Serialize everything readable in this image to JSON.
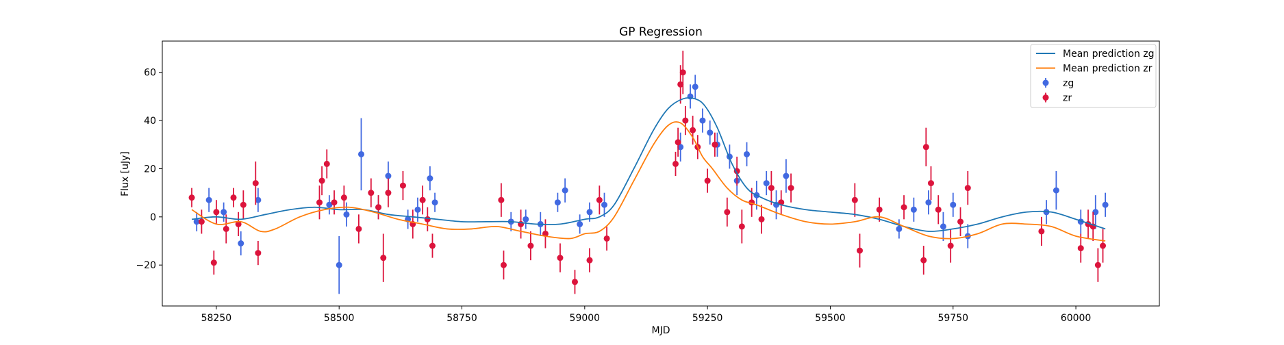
{
  "chart_data": {
    "type": "scatter",
    "title": "GP Regression",
    "xlabel": "MJD",
    "ylabel": "Flux [uJy]",
    "xlim": [
      58140,
      60170
    ],
    "ylim": [
      -37,
      73
    ],
    "xticks": [
      58250,
      58500,
      58750,
      59000,
      59250,
      59500,
      59750,
      60000
    ],
    "yticks": [
      -20,
      0,
      20,
      40,
      60
    ],
    "grid": false,
    "legend_position": "top-right",
    "colors": {
      "mean_zg": "#1f77b4",
      "mean_zr": "#ff7f0e",
      "zg": "#4169e1",
      "zr": "#dc143c"
    },
    "legend": [
      {
        "label": "Mean prediction zg",
        "kind": "line",
        "color": "#1f77b4"
      },
      {
        "label": "Mean prediction zr",
        "kind": "line",
        "color": "#ff7f0e"
      },
      {
        "label": "zg",
        "kind": "errorbar",
        "color": "#4169e1"
      },
      {
        "label": "zr",
        "kind": "errorbar",
        "color": "#dc143c"
      }
    ],
    "series": [
      {
        "name": "Mean prediction zg",
        "kind": "line",
        "x": [
          58200,
          58250,
          58300,
          58350,
          58400,
          58450,
          58500,
          58550,
          58600,
          58650,
          58700,
          58750,
          58800,
          58850,
          58900,
          58950,
          59000,
          59030,
          59060,
          59100,
          59140,
          59170,
          59200,
          59225,
          59245,
          59270,
          59300,
          59330,
          59360,
          59400,
          59450,
          59500,
          59550,
          59600,
          59650,
          59700,
          59750,
          59800,
          59850,
          59900,
          59950,
          60000,
          60060
        ],
        "y": [
          -1,
          0,
          -1,
          1,
          3,
          4,
          3,
          3,
          1,
          0,
          -1,
          -2,
          -2,
          -2,
          -3,
          -3,
          -1,
          0,
          5,
          20,
          36,
          45,
          49,
          49,
          46,
          37,
          22,
          12,
          8,
          5,
          3,
          2,
          1,
          -1,
          -4,
          -6,
          -5,
          -3,
          0,
          2,
          2,
          -1,
          -5
        ]
      },
      {
        "name": "Mean prediction zr",
        "kind": "line",
        "x": [
          58200,
          58250,
          58300,
          58340,
          58370,
          58420,
          58470,
          58520,
          58570,
          58620,
          58670,
          58720,
          58770,
          58820,
          58870,
          58920,
          58970,
          59000,
          59030,
          59060,
          59100,
          59140,
          59170,
          59195,
          59220,
          59240,
          59260,
          59290,
          59320,
          59350,
          59400,
          59450,
          59500,
          59550,
          59600,
          59650,
          59700,
          59750,
          59800,
          59850,
          59900,
          59950,
          60000,
          60060
        ],
        "y": [
          3,
          -3,
          -2,
          -6,
          -5,
          0,
          3,
          4,
          2,
          -1,
          -3,
          -5,
          -5,
          -4,
          -6,
          -8,
          -9,
          -7,
          -6,
          0,
          15,
          30,
          38,
          39,
          33,
          25,
          20,
          12,
          7,
          5,
          1,
          -2,
          -3,
          -2,
          0,
          -4,
          -8,
          -9,
          -7,
          -3,
          -3,
          -4,
          -8,
          -10
        ]
      },
      {
        "name": "zg",
        "kind": "errorbar",
        "x": [
          58210,
          58235,
          58265,
          58300,
          58335,
          58480,
          58500,
          58515,
          58545,
          58580,
          58600,
          58640,
          58660,
          58685,
          58695,
          58850,
          58880,
          58910,
          58945,
          58960,
          58990,
          59010,
          59040,
          59195,
          59215,
          59225,
          59240,
          59255,
          59270,
          59295,
          59310,
          59330,
          59350,
          59370,
          59390,
          59410,
          59640,
          59670,
          59700,
          59730,
          59750,
          59780,
          59940,
          59960,
          60010,
          60040,
          60060
        ],
        "y": [
          -2,
          7,
          2,
          -11,
          7,
          5,
          -20,
          1,
          26,
          4,
          17,
          -1,
          3,
          16,
          6,
          -2,
          -1,
          -3,
          6,
          11,
          -3,
          2,
          5,
          29,
          50,
          54,
          40,
          35,
          30,
          25,
          15,
          26,
          9,
          14,
          5,
          17,
          -5,
          3,
          6,
          -4,
          5,
          -8,
          2,
          11,
          -2,
          2,
          5
        ],
        "err": [
          4,
          5,
          4,
          5,
          5,
          4,
          12,
          5,
          15,
          5,
          6,
          4,
          5,
          5,
          4,
          4,
          4,
          5,
          4,
          5,
          4,
          4,
          5,
          6,
          5,
          5,
          5,
          5,
          5,
          5,
          6,
          5,
          6,
          5,
          6,
          7,
          4,
          5,
          5,
          6,
          5,
          5,
          5,
          8,
          5,
          7,
          5
        ]
      },
      {
        "name": "zr",
        "kind": "errorbar",
        "x": [
          58200,
          58220,
          58245,
          58250,
          58270,
          58285,
          58295,
          58305,
          58330,
          58335,
          58460,
          58465,
          58475,
          58490,
          58510,
          58540,
          58565,
          58580,
          58590,
          58600,
          58630,
          58650,
          58670,
          58680,
          58690,
          58830,
          58835,
          58870,
          58890,
          58920,
          58950,
          58980,
          59010,
          59030,
          59045,
          59185,
          59190,
          59195,
          59200,
          59205,
          59220,
          59230,
          59250,
          59265,
          59290,
          59310,
          59320,
          59340,
          59360,
          59380,
          59400,
          59420,
          59550,
          59560,
          59600,
          59650,
          59690,
          59695,
          59705,
          59720,
          59745,
          59765,
          59780,
          59930,
          60010,
          60025,
          60035,
          60045,
          60055
        ],
        "y": [
          8,
          -2,
          -19,
          2,
          -5,
          8,
          -3,
          5,
          14,
          -15,
          6,
          15,
          22,
          6,
          8,
          -5,
          10,
          4,
          -17,
          10,
          13,
          -3,
          7,
          -1,
          -12,
          7,
          -20,
          -3,
          -12,
          -7,
          -17,
          -27,
          -18,
          7,
          -9,
          22,
          31,
          55,
          60,
          40,
          36,
          29,
          15,
          30,
          2,
          19,
          -4,
          6,
          -1,
          12,
          6,
          12,
          7,
          -14,
          3,
          4,
          -18,
          29,
          14,
          3,
          -12,
          -2,
          12,
          -6,
          -13,
          -3,
          -4,
          -20,
          -12
        ],
        "err": [
          4,
          5,
          5,
          5,
          6,
          4,
          5,
          6,
          9,
          5,
          7,
          6,
          6,
          5,
          5,
          6,
          6,
          5,
          10,
          6,
          6,
          6,
          6,
          5,
          5,
          7,
          6,
          6,
          6,
          6,
          6,
          5,
          5,
          6,
          5,
          5,
          6,
          8,
          9,
          6,
          6,
          5,
          5,
          5,
          6,
          6,
          7,
          6,
          6,
          7,
          5,
          6,
          7,
          7,
          5,
          5,
          6,
          8,
          7,
          6,
          7,
          6,
          7,
          6,
          6,
          6,
          6,
          7,
          7
        ]
      }
    ]
  }
}
